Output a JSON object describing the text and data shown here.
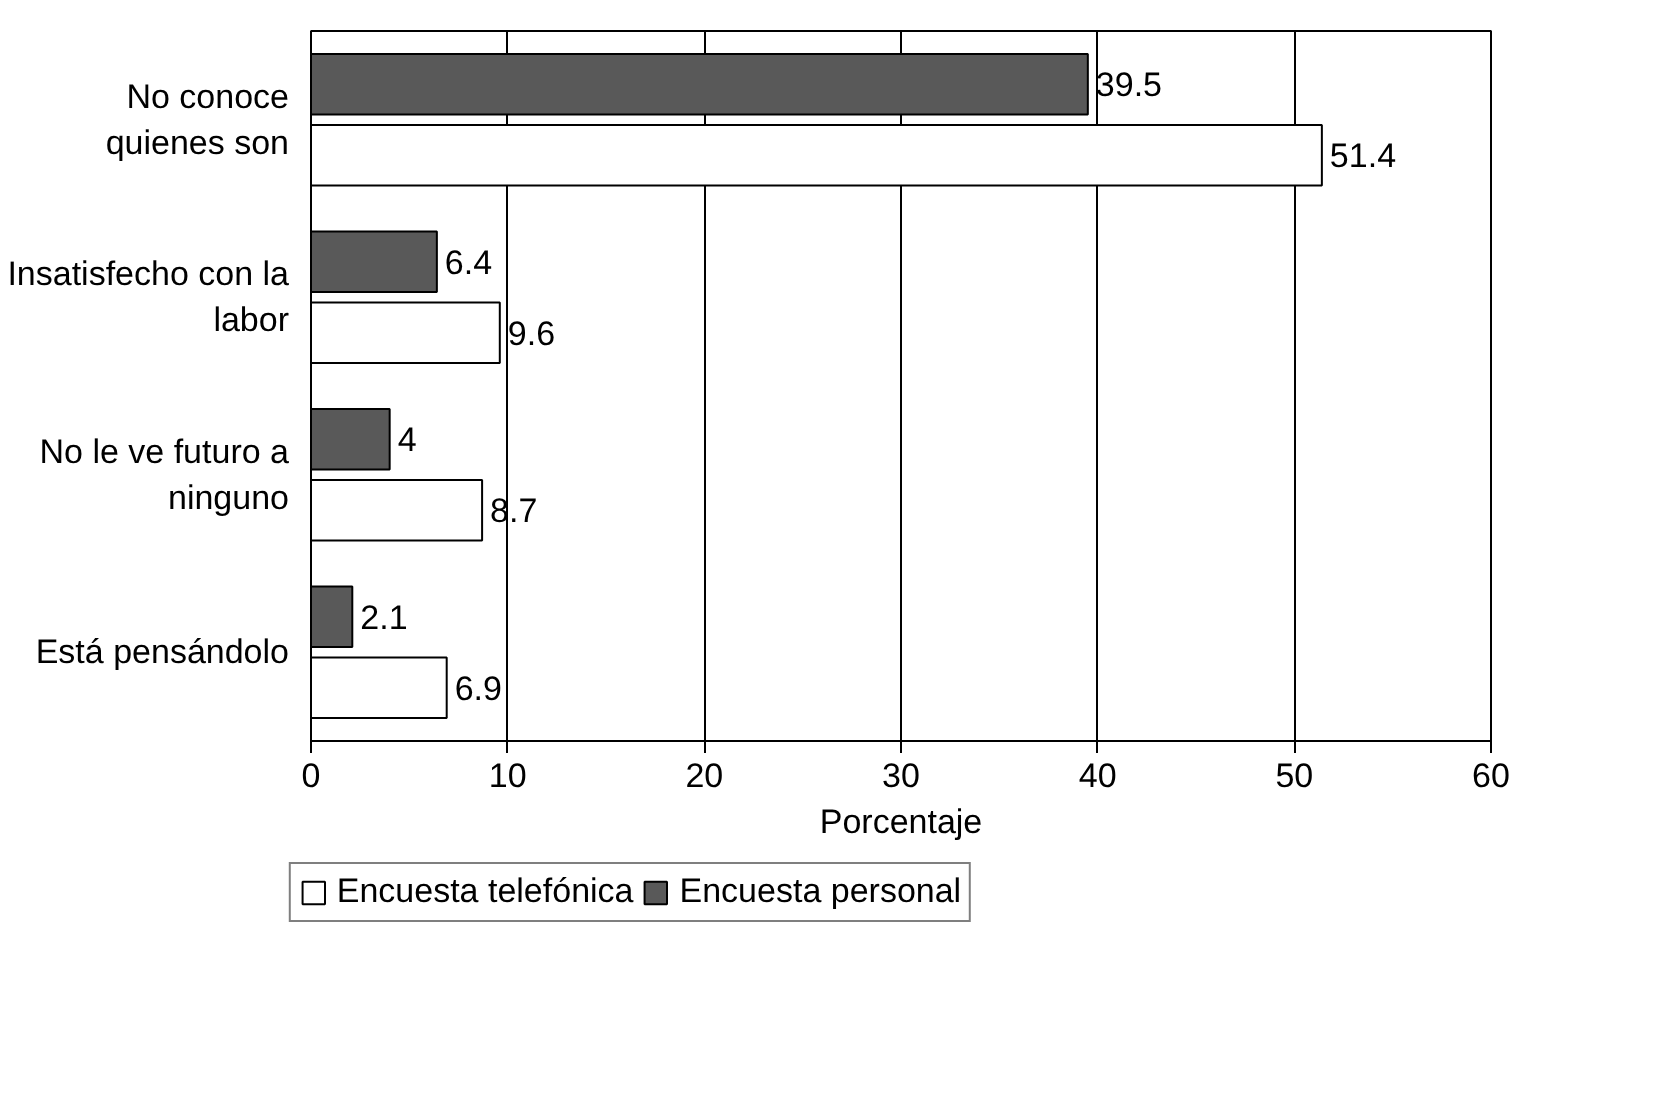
{
  "chart_data": {
    "type": "bar",
    "orientation": "horizontal",
    "xlabel": "Porcentaje",
    "categories": [
      "No conoce\nquienes son",
      "Insatisfecho con la\nlabor",
      "No le ve futuro a\nninguno",
      "Está pensándolo"
    ],
    "series": [
      {
        "name": "Encuesta telefónica",
        "color": "#ffffff",
        "values": [
          51.4,
          9.6,
          8.7,
          6.9
        ]
      },
      {
        "name": "Encuesta personal",
        "color": "#595959",
        "values": [
          39.5,
          6.4,
          4,
          2.1
        ]
      }
    ],
    "xlim": [
      0,
      60
    ],
    "xticks": [
      0,
      10,
      20,
      30,
      40,
      50,
      60
    ],
    "grid": "x",
    "legend": "bottom",
    "data_labels": true
  }
}
